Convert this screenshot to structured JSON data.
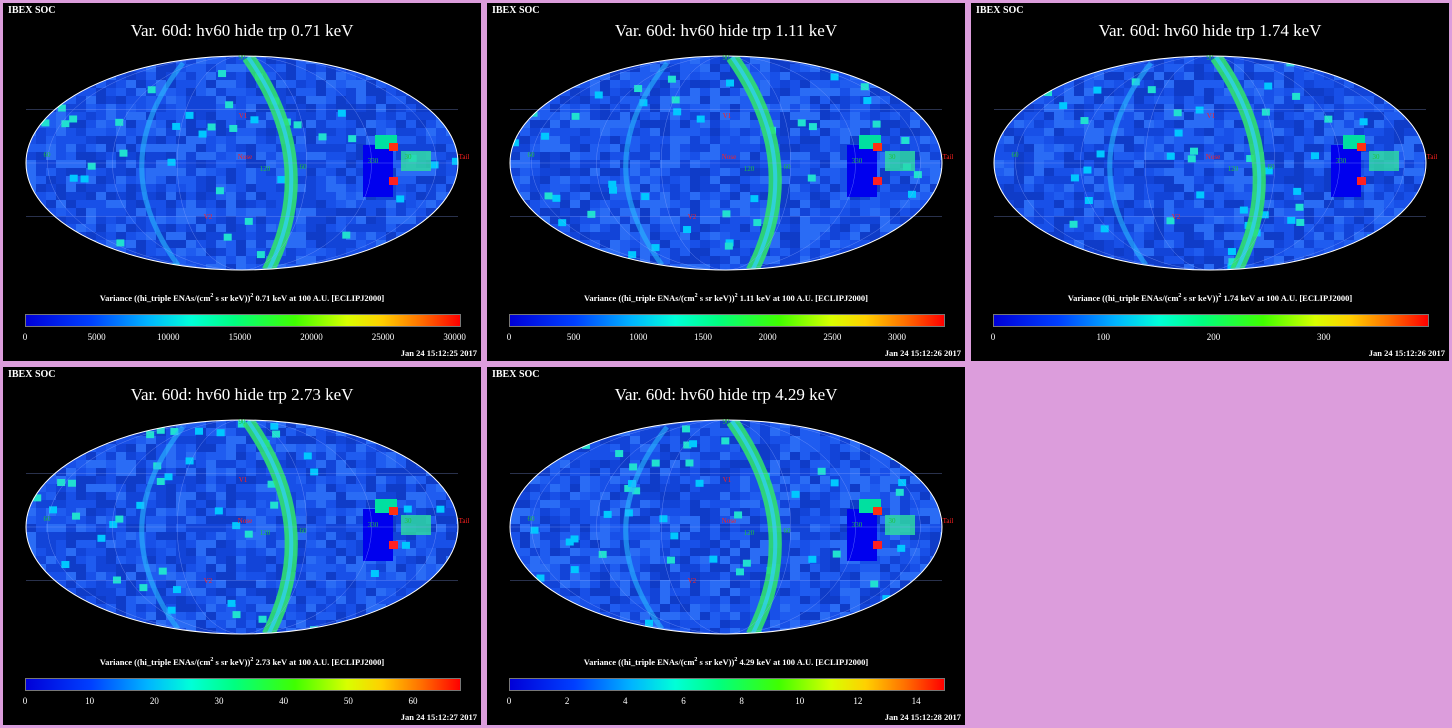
{
  "header_label": "IBEX SOC",
  "variance_prefix": "Variance ((hi_triple ENAs/(cm",
  "variance_exp_a": "2",
  "variance_mid": " s sr keV))",
  "variance_exp_b": "2",
  "variance_suffix_unit": " keV at 100 A.U. [ECLIPJ2000]",
  "map_labels": {
    "top": "90",
    "nose": "Nose",
    "tail": "Tail",
    "v1": "V1",
    "v2": "V2",
    "lon_left_edge": "60",
    "lon_a": "30",
    "lon_b": "0",
    "lon_c": "330",
    "lon_d": "300",
    "lon_e": "270",
    "lon_f": "240",
    "lon_g": "120",
    "lon_h": "60",
    "lon_i": "30",
    "top_left": "60",
    "bottom_left": "60"
  },
  "colors": {
    "background": "#000000",
    "frame": "#dc9ddc",
    "map_base": "#1a4fe0",
    "accent_red": "#ff2020"
  },
  "panels": [
    {
      "title": "Var. 60d: hv60 hide trp 0.71 keV",
      "energy": "0.71",
      "ticks": [
        "0",
        "5000",
        "10000",
        "15000",
        "20000",
        "25000",
        "30000"
      ],
      "tick_fractions": [
        0,
        0.165,
        0.33,
        0.495,
        0.66,
        0.825,
        0.99
      ],
      "timestamp": "Jan 24 15:12:25 2017"
    },
    {
      "title": "Var. 60d: hv60 hide trp 1.11 keV",
      "energy": "1.11",
      "ticks": [
        "0",
        "500",
        "1000",
        "1500",
        "2000",
        "2500",
        "3000"
      ],
      "tick_fractions": [
        0,
        0.149,
        0.298,
        0.447,
        0.596,
        0.745,
        0.894
      ],
      "timestamp": "Jan 24 15:12:26 2017"
    },
    {
      "title": "Var. 60d: hv60 hide trp 1.74 keV",
      "energy": "1.74",
      "ticks": [
        "0",
        "100",
        "200",
        "300"
      ],
      "tick_fractions": [
        0,
        0.254,
        0.508,
        0.762
      ],
      "timestamp": "Jan 24 15:12:26 2017"
    },
    {
      "title": "Var. 60d: hv60 hide trp 2.73 keV",
      "energy": "2.73",
      "ticks": [
        "0",
        "10",
        "20",
        "30",
        "40",
        "50",
        "60"
      ],
      "tick_fractions": [
        0,
        0.149,
        0.298,
        0.447,
        0.596,
        0.745,
        0.894
      ],
      "timestamp": "Jan 24 15:12:27 2017"
    },
    {
      "title": "Var. 60d: hv60 hide trp 4.29 keV",
      "energy": "4.29",
      "ticks": [
        "0",
        "2",
        "4",
        "6",
        "8",
        "10",
        "12",
        "14"
      ],
      "tick_fractions": [
        0,
        0.134,
        0.268,
        0.402,
        0.536,
        0.67,
        0.804,
        0.938
      ],
      "timestamp": "Jan 24 15:12:28 2017"
    }
  ]
}
